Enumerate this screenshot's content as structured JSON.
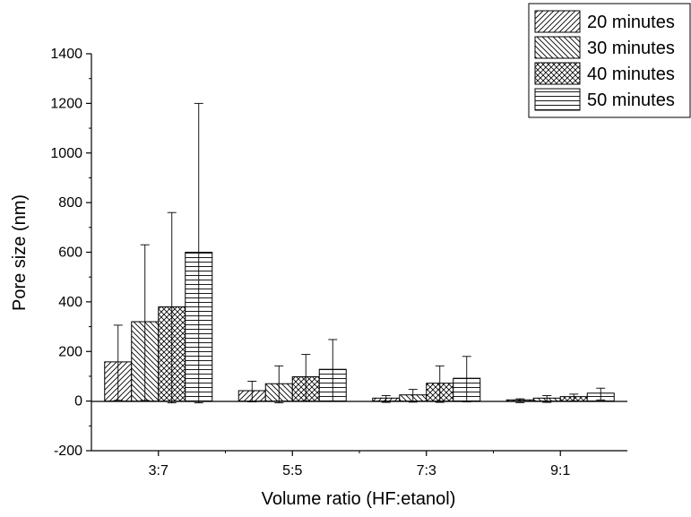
{
  "chart_data": {
    "type": "bar",
    "title": "",
    "xlabel": "Volume ratio (HF:etanol)",
    "ylabel": "Pore size (nm)",
    "ylim": [
      -200,
      1400
    ],
    "yticks": [
      "-200",
      "0",
      "200",
      "400",
      "600",
      "800",
      "1000",
      "1200",
      "1400"
    ],
    "categories": [
      "3:7",
      "5:5",
      "7:3",
      "9:1"
    ],
    "series": [
      {
        "name": "20 minutes",
        "pattern": "diagonal-forward",
        "values": [
          158,
          42,
          12,
          5
        ],
        "error": [
          148,
          38,
          10,
          4
        ]
      },
      {
        "name": "30 minutes",
        "pattern": "diagonal-backward",
        "values": [
          320,
          70,
          25,
          12
        ],
        "error": [
          310,
          72,
          22,
          10
        ]
      },
      {
        "name": "40 minutes",
        "pattern": "crosshatch",
        "values": [
          380,
          98,
          72,
          18
        ],
        "error": [
          380,
          90,
          70,
          10
        ]
      },
      {
        "name": "50 minutes",
        "pattern": "horizontal",
        "values": [
          600,
          128,
          92,
          32
        ],
        "error": [
          600,
          120,
          88,
          20
        ]
      }
    ],
    "error_bars": "upper",
    "legend": {
      "position": "top-right"
    },
    "grid": false,
    "colors": {
      "bar_stroke": "#000000",
      "bar_fill": "#ffffff",
      "axis": "#000000"
    }
  }
}
